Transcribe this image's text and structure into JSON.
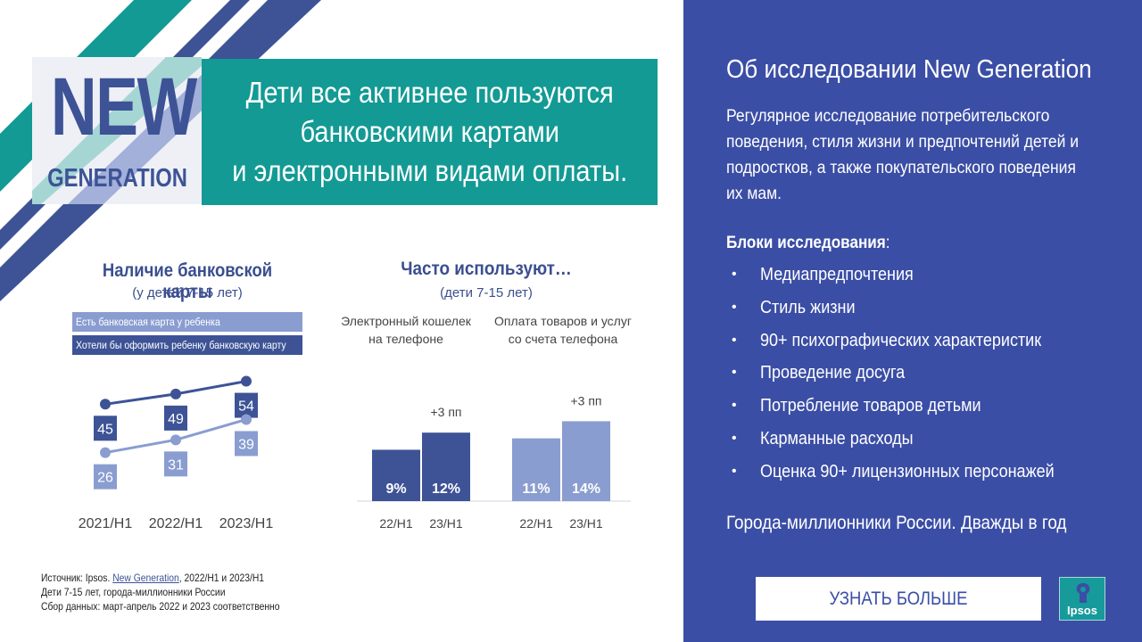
{
  "logo": {
    "line1": "NEW",
    "line2": "GENERATION"
  },
  "headline": "Дети все активнее пользуются\nбанковскими картами\nи электронными видами оплаты.",
  "left_chart": {
    "title": "Наличие банковской карты",
    "subtitle": "(у детей 7-15 лет)",
    "legend": [
      "Есть банковская карта у ребенка",
      "Хотели бы оформить ребенку банковскую карту"
    ]
  },
  "middle_chart": {
    "title": "Часто используют…",
    "subtitle": "(дети 7-15 лет)",
    "group_labels": [
      "Электронный кошелек\nна телефоне",
      "Оплата товаров и услуг\nсо счета телефона"
    ]
  },
  "chart_data": [
    {
      "type": "line",
      "title": "Наличие банковской карты",
      "subtitle": "(у детей 7-15 лет)",
      "categories": [
        "2021/H1",
        "2022/H1",
        "2023/H1"
      ],
      "series": [
        {
          "name": "Хотели бы оформить ребенку банковскую карту",
          "values": [
            45,
            49,
            54
          ],
          "labels": [
            "45",
            "49",
            "54"
          ],
          "color": "#3d5396"
        },
        {
          "name": "Есть банковская карта у ребенка",
          "values": [
            26,
            31,
            39
          ],
          "labels": [
            "26",
            "31",
            "39"
          ],
          "color": "#8a9dd0"
        }
      ],
      "grid": false
    },
    {
      "type": "bar",
      "title": "Часто используют…",
      "subtitle": "(дети 7-15 лет)",
      "groups": [
        {
          "categories": [
            "22/H1",
            "23/H1"
          ],
          "values": [
            9,
            12
          ],
          "labels": [
            "9%",
            "12%"
          ],
          "delta": "+3 пп",
          "colors": [
            "#3d5396",
            "#3d5396"
          ]
        },
        {
          "categories": [
            "22/H1",
            "23/H1"
          ],
          "values": [
            11,
            14
          ],
          "labels": [
            "11%",
            "14%"
          ],
          "delta": "+3 пп",
          "colors": [
            "#8a9dd0",
            "#8a9dd0"
          ]
        }
      ],
      "ylim": [
        0,
        16
      ],
      "grid": false
    }
  ],
  "source": {
    "prefix": "Источник: Ipsos. ",
    "link": "New Generation",
    "suffix": ", 2022/H1 и 2023/H1",
    "line2": "Дети 7-15 лет, города-миллионники России",
    "line3": "Сбор данных: март-апрель 2022 и 2023 соответственно"
  },
  "panel": {
    "title": "Об исследовании New Generation",
    "description": "Регулярное исследование потребительского поведения, стиля жизни и предпочтений детей и подростков, а также покупательского поведения их мам.",
    "blocks_heading": "Блоки исследования",
    "blocks_colon": ":",
    "bullet": "•",
    "items": [
      "Медиапредпочтения",
      "Стиль жизни",
      "90+ психографических характеристик",
      "Проведение досуга",
      "Потребление товаров детьми",
      "Карманные расходы",
      "Оценка 90+ лицензионных персонажей"
    ],
    "cities": "Города-миллионники России. Дважды в год",
    "button_label": "УЗНАТЬ БОЛЬШЕ",
    "brand": "Ipsos"
  },
  "colors": {
    "teal": "#139a94",
    "navy": "#3d5396",
    "light_blue": "#8a9dd0",
    "panel": "#3b4ea5"
  }
}
